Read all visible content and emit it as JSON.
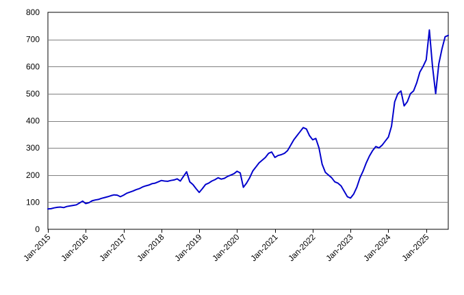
{
  "chart_data": {
    "type": "line",
    "title": "",
    "xlabel": "",
    "ylabel": "",
    "ylim": [
      0,
      800
    ],
    "xlim": [
      "2015-01",
      "2025-08"
    ],
    "y_ticks": [
      0,
      100,
      200,
      300,
      400,
      500,
      600,
      700,
      800
    ],
    "x_ticks": [
      {
        "date": "2015-01",
        "label": "Jan-2015"
      },
      {
        "date": "2016-01",
        "label": "Jan-2016"
      },
      {
        "date": "2017-01",
        "label": "Jan-2017"
      },
      {
        "date": "2018-01",
        "label": "Jan-2018"
      },
      {
        "date": "2019-01",
        "label": "Jan-2019"
      },
      {
        "date": "2020-01",
        "label": "Jan-2020"
      },
      {
        "date": "2021-01",
        "label": "Jan-2021"
      },
      {
        "date": "2022-01",
        "label": "Jan-2022"
      },
      {
        "date": "2023-01",
        "label": "Jan-2023"
      },
      {
        "date": "2024-01",
        "label": "Jan-2024"
      },
      {
        "date": "2025-01",
        "label": "Jan-2025"
      }
    ],
    "grid": "horizontal",
    "legend": "none",
    "line_color": "#0000cc",
    "series": [
      {
        "x": [
          "2015-01",
          "2015-02",
          "2015-03",
          "2015-04",
          "2015-05",
          "2015-06",
          "2015-07",
          "2015-08",
          "2015-09",
          "2015-10",
          "2015-11",
          "2015-12",
          "2016-01",
          "2016-02",
          "2016-03",
          "2016-04",
          "2016-05",
          "2016-06",
          "2016-07",
          "2016-08",
          "2016-09",
          "2016-10",
          "2016-11",
          "2016-12",
          "2017-01",
          "2017-02",
          "2017-03",
          "2017-04",
          "2017-05",
          "2017-06",
          "2017-07",
          "2017-08",
          "2017-09",
          "2017-10",
          "2017-11",
          "2017-12",
          "2018-01",
          "2018-02",
          "2018-03",
          "2018-04",
          "2018-05",
          "2018-06",
          "2018-07",
          "2018-08",
          "2018-09",
          "2018-10",
          "2018-11",
          "2018-12",
          "2019-01",
          "2019-02",
          "2019-03",
          "2019-04",
          "2019-05",
          "2019-06",
          "2019-07",
          "2019-08",
          "2019-09",
          "2019-10",
          "2019-11",
          "2019-12",
          "2020-01",
          "2020-02",
          "2020-03",
          "2020-04",
          "2020-05",
          "2020-06",
          "2020-07",
          "2020-08",
          "2020-09",
          "2020-10",
          "2020-11",
          "2020-12",
          "2021-01",
          "2021-02",
          "2021-03",
          "2021-04",
          "2021-05",
          "2021-06",
          "2021-07",
          "2021-08",
          "2021-09",
          "2021-10",
          "2021-11",
          "2021-12",
          "2022-01",
          "2022-02",
          "2022-03",
          "2022-04",
          "2022-05",
          "2022-06",
          "2022-07",
          "2022-08",
          "2022-09",
          "2022-10",
          "2022-11",
          "2022-12",
          "2023-01",
          "2023-02",
          "2023-03",
          "2023-04",
          "2023-05",
          "2023-06",
          "2023-07",
          "2023-08",
          "2023-09",
          "2023-10",
          "2023-11",
          "2023-12",
          "2024-01",
          "2024-02",
          "2024-03",
          "2024-04",
          "2024-05",
          "2024-06",
          "2024-07",
          "2024-08",
          "2024-09",
          "2024-10",
          "2024-11",
          "2024-12",
          "2025-01",
          "2025-02",
          "2025-03",
          "2025-04",
          "2025-05",
          "2025-06",
          "2025-07",
          "2025-08"
        ],
        "values": [
          75,
          76,
          79,
          81,
          82,
          80,
          84,
          86,
          88,
          90,
          97,
          104,
          95,
          98,
          105,
          108,
          110,
          114,
          117,
          120,
          124,
          127,
          126,
          120,
          126,
          133,
          137,
          141,
          146,
          150,
          156,
          160,
          163,
          168,
          170,
          175,
          180,
          178,
          177,
          180,
          182,
          186,
          178,
          195,
          212,
          175,
          165,
          150,
          136,
          150,
          165,
          170,
          178,
          183,
          190,
          185,
          188,
          195,
          200,
          205,
          214,
          208,
          155,
          170,
          190,
          215,
          230,
          245,
          255,
          265,
          280,
          285,
          265,
          272,
          275,
          280,
          290,
          310,
          330,
          345,
          360,
          375,
          370,
          345,
          330,
          335,
          300,
          240,
          210,
          200,
          190,
          175,
          170,
          160,
          140,
          120,
          115,
          130,
          155,
          190,
          215,
          245,
          270,
          290,
          305,
          300,
          310,
          325,
          340,
          380,
          470,
          500,
          510,
          455,
          470,
          500,
          510,
          540,
          580,
          600,
          625,
          735,
          600,
          500,
          610,
          665,
          710,
          715
        ]
      }
    ]
  }
}
